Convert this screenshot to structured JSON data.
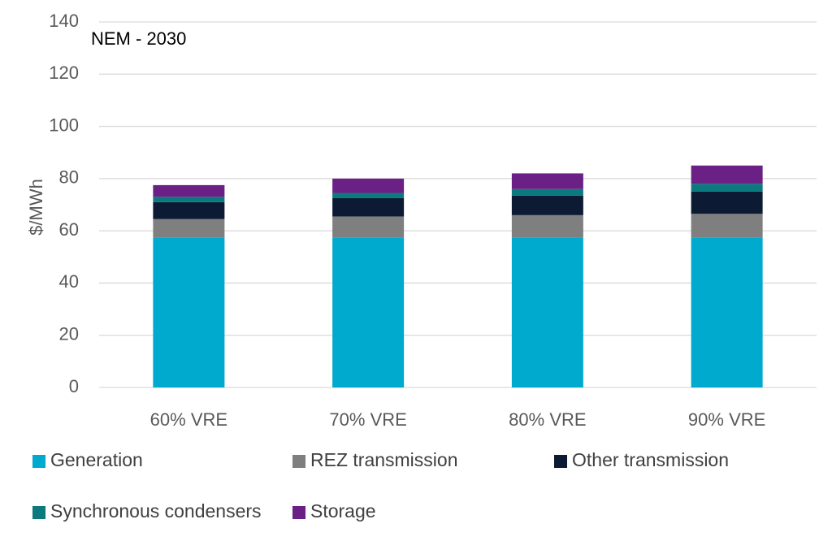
{
  "chart_data": {
    "type": "bar",
    "stacked": true,
    "title": "NEM - 2030",
    "xlabel": "",
    "ylabel": "$/MWh",
    "ylim": [
      0,
      140
    ],
    "yticks": [
      0,
      20,
      40,
      60,
      80,
      100,
      120,
      140
    ],
    "grid": true,
    "legend_position": "bottom",
    "categories": [
      "60% VRE",
      "70% VRE",
      "80% VRE",
      "90% VRE"
    ],
    "series": [
      {
        "name": "Generation",
        "color": "#00a9ce",
        "values": [
          57.5,
          57.5,
          57.5,
          57.5
        ]
      },
      {
        "name": "REZ transmission",
        "color": "#7f7f7f",
        "values": [
          7,
          8,
          8.5,
          9
        ]
      },
      {
        "name": "Other transmission",
        "color": "#0c1b33",
        "values": [
          6.5,
          7,
          7.5,
          8.5
        ]
      },
      {
        "name": "Synchronous condensers",
        "color": "#0a7a7e",
        "values": [
          2,
          2,
          2.5,
          3
        ]
      },
      {
        "name": "Storage",
        "color": "#6b2085",
        "values": [
          4.5,
          5.5,
          6,
          7
        ]
      }
    ]
  }
}
